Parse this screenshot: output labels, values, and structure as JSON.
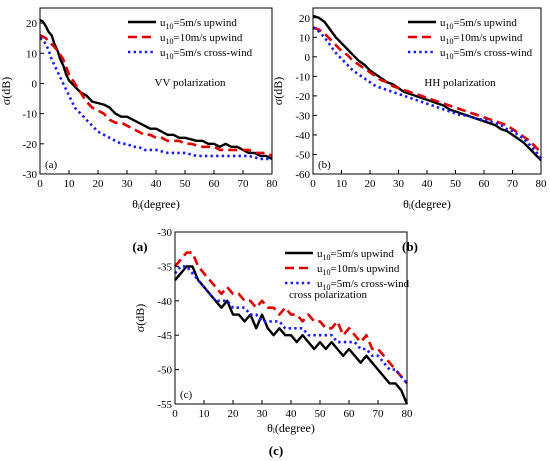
{
  "chart_data": [
    {
      "type": "line",
      "panel_tag": "(a)",
      "caption": "(a)",
      "annotation": "VV polarization",
      "xlabel": "θᵢ(degree)",
      "ylabel": "σ(dB)",
      "xlim": [
        0,
        80
      ],
      "ylim": [
        -30,
        25
      ],
      "xticks": [
        0,
        10,
        20,
        30,
        40,
        50,
        60,
        70,
        80
      ],
      "yticks": [
        -30,
        -20,
        -10,
        0,
        10,
        20
      ],
      "legend_position": "top-right",
      "grid": false,
      "series": [
        {
          "name": "u10=5m/s  upwind",
          "name_base": "u",
          "name_sub": "10",
          "name_rest": "=5m/s  upwind",
          "color": "#000000",
          "dash": "solid",
          "x": [
            0,
            1,
            2,
            3,
            4,
            5,
            6,
            7,
            8,
            9,
            10,
            12,
            14,
            16,
            18,
            20,
            22,
            24,
            26,
            28,
            30,
            32,
            34,
            36,
            38,
            40,
            42,
            44,
            46,
            48,
            50,
            52,
            54,
            56,
            58,
            60,
            62,
            64,
            66,
            68,
            70,
            72,
            74,
            76,
            78,
            80
          ],
          "y": [
            21,
            20.5,
            19,
            17,
            16,
            13,
            11,
            8,
            6,
            3,
            1,
            -1,
            -3,
            -4,
            -6,
            -6.5,
            -7,
            -8,
            -10,
            -11,
            -11,
            -12,
            -13,
            -14,
            -15,
            -15,
            -16,
            -17,
            -17,
            -18,
            -18,
            -18.5,
            -19,
            -19,
            -20,
            -20,
            -21,
            -20,
            -21,
            -21,
            -22,
            -23,
            -23,
            -24,
            -24,
            -25
          ]
        },
        {
          "name": "u10=10m/s  upwind",
          "name_base": "u",
          "name_sub": "10",
          "name_rest": "=10m/s  upwind",
          "color": "#e00000",
          "dash": "dash",
          "x": [
            0,
            1,
            2,
            3,
            4,
            5,
            6,
            8,
            10,
            12,
            14,
            16,
            18,
            20,
            22,
            24,
            26,
            28,
            30,
            32,
            34,
            36,
            38,
            40,
            42,
            44,
            46,
            48,
            50,
            52,
            54,
            56,
            58,
            60,
            62,
            64,
            66,
            68,
            70,
            72,
            74,
            76,
            78,
            80
          ],
          "y": [
            16,
            15.5,
            15,
            14,
            13,
            12,
            11,
            8,
            3,
            0,
            -3,
            -6,
            -8,
            -9,
            -10,
            -12,
            -13,
            -13,
            -14,
            -15,
            -16,
            -17,
            -17,
            -18,
            -18,
            -19,
            -19,
            -19,
            -20,
            -20,
            -20.5,
            -21,
            -21,
            -21,
            -22,
            -22,
            -22,
            -22,
            -22,
            -22,
            -23,
            -23,
            -23,
            -24
          ]
        },
        {
          "name": "u10=5m/s  cross-wind",
          "name_base": "u",
          "name_sub": "10",
          "name_rest": "=5m/s  cross-wind",
          "color": "#1a1aff",
          "dash": "dot",
          "x": [
            0,
            1,
            2,
            3,
            4,
            5,
            6,
            8,
            10,
            12,
            14,
            16,
            18,
            20,
            22,
            24,
            26,
            28,
            30,
            32,
            34,
            36,
            38,
            40,
            42,
            44,
            46,
            48,
            50,
            52,
            54,
            56,
            58,
            60,
            62,
            64,
            66,
            68,
            70,
            72,
            74,
            76,
            78,
            80
          ],
          "y": [
            15,
            14.5,
            13,
            11,
            8,
            6,
            4,
            0,
            -4,
            -8,
            -10,
            -12,
            -14,
            -16,
            -17,
            -18,
            -19,
            -20,
            -20,
            -21,
            -21,
            -22,
            -22,
            -22,
            -22.5,
            -23,
            -23,
            -23,
            -23,
            -23.5,
            -24,
            -24,
            -24,
            -24,
            -24,
            -24,
            -24,
            -24,
            -24,
            -24,
            -24.5,
            -25,
            -25,
            -25
          ]
        }
      ]
    },
    {
      "type": "line",
      "panel_tag": "(b)",
      "caption": "(b)",
      "annotation": "HH polarization",
      "xlabel": "θᵢ(degree)",
      "ylabel": "σ(dB)",
      "xlim": [
        0,
        80
      ],
      "ylim": [
        -60,
        25
      ],
      "xticks": [
        0,
        10,
        20,
        30,
        40,
        50,
        60,
        70,
        80
      ],
      "yticks": [
        -60,
        -50,
        -40,
        -30,
        -20,
        -10,
        0,
        10,
        20
      ],
      "legend_position": "top-right",
      "grid": false,
      "series": [
        {
          "name": "u10=5m/s  upwind",
          "name_base": "u",
          "name_sub": "10",
          "name_rest": "=5m/s  upwind",
          "color": "#000000",
          "dash": "solid",
          "x": [
            0,
            2,
            4,
            6,
            8,
            10,
            12,
            14,
            16,
            18,
            20,
            22,
            24,
            26,
            28,
            30,
            32,
            34,
            36,
            38,
            40,
            42,
            44,
            46,
            48,
            50,
            52,
            54,
            56,
            58,
            60,
            62,
            64,
            66,
            68,
            70,
            72,
            74,
            76,
            78,
            80
          ],
          "y": [
            21,
            20,
            18,
            14,
            10,
            7,
            4,
            1,
            -2,
            -4,
            -7,
            -9,
            -11,
            -13,
            -14,
            -16,
            -18,
            -19,
            -20,
            -21,
            -22,
            -23,
            -24,
            -25,
            -27,
            -28,
            -29,
            -30,
            -31,
            -32,
            -33,
            -34,
            -35,
            -37,
            -38,
            -40,
            -42,
            -44,
            -47,
            -50,
            -53
          ]
        },
        {
          "name": "u10=10m/s  upwind",
          "name_base": "u",
          "name_sub": "10",
          "name_rest": "=10m/s  upwind",
          "color": "#e00000",
          "dash": "dash",
          "x": [
            0,
            2,
            4,
            6,
            8,
            10,
            12,
            14,
            16,
            18,
            20,
            22,
            24,
            26,
            28,
            30,
            32,
            34,
            36,
            38,
            40,
            42,
            44,
            46,
            48,
            50,
            52,
            54,
            56,
            58,
            60,
            62,
            64,
            66,
            68,
            70,
            72,
            74,
            76,
            78,
            80
          ],
          "y": [
            15,
            14,
            12,
            9,
            6,
            3,
            1,
            -2,
            -4,
            -6,
            -8,
            -10,
            -12,
            -13,
            -15,
            -16,
            -17,
            -18,
            -19,
            -20,
            -21,
            -22,
            -23,
            -24,
            -25,
            -26,
            -27,
            -28,
            -29,
            -30,
            -31,
            -32,
            -33,
            -34,
            -35,
            -37,
            -39,
            -41,
            -43,
            -46,
            -49
          ]
        },
        {
          "name": "u10=5m/s  cross-wind",
          "name_base": "u",
          "name_sub": "10",
          "name_rest": "=5m/s  cross-wind",
          "color": "#1a1aff",
          "dash": "dot",
          "x": [
            0,
            2,
            4,
            6,
            8,
            10,
            12,
            14,
            16,
            18,
            20,
            22,
            24,
            26,
            28,
            30,
            32,
            34,
            36,
            38,
            40,
            42,
            44,
            46,
            48,
            50,
            52,
            54,
            56,
            58,
            60,
            62,
            64,
            66,
            68,
            70,
            72,
            74,
            76,
            78,
            80
          ],
          "y": [
            15,
            13,
            10,
            6,
            2,
            -1,
            -4,
            -7,
            -9,
            -11,
            -13,
            -15,
            -16,
            -17,
            -18,
            -19,
            -20,
            -21,
            -22,
            -23,
            -24,
            -25,
            -26,
            -27,
            -28,
            -29,
            -30,
            -30,
            -31,
            -32,
            -32,
            -33,
            -34,
            -35,
            -37,
            -38,
            -40,
            -42,
            -45,
            -48,
            -52
          ]
        }
      ]
    },
    {
      "type": "line",
      "panel_tag": "(c)",
      "caption": "(c)",
      "annotation": "cross polarization",
      "xlabel": "θᵢ(degree)",
      "ylabel": "σ(dB)",
      "xlim": [
        0,
        80
      ],
      "ylim": [
        -55,
        -30
      ],
      "xticks": [
        0,
        10,
        20,
        30,
        40,
        50,
        60,
        70,
        80
      ],
      "yticks": [
        -55,
        -50,
        -45,
        -40,
        -35,
        -30
      ],
      "legend_position": "top-right",
      "grid": false,
      "series": [
        {
          "name": "u10=5m/s  upwind",
          "name_base": "u",
          "name_sub": "10",
          "name_rest": "=5m/s  upwind",
          "color": "#000000",
          "dash": "solid",
          "x": [
            0,
            2,
            4,
            6,
            8,
            10,
            12,
            14,
            16,
            18,
            20,
            22,
            24,
            26,
            28,
            30,
            32,
            34,
            36,
            38,
            40,
            42,
            44,
            46,
            48,
            50,
            52,
            54,
            56,
            58,
            60,
            62,
            64,
            66,
            68,
            70,
            72,
            74,
            76,
            78,
            80
          ],
          "y": [
            -37,
            -36,
            -35,
            -35,
            -37,
            -38,
            -39,
            -40,
            -41,
            -40,
            -42,
            -42,
            -43,
            -42,
            -44,
            -42,
            -44,
            -45,
            -44,
            -45,
            -45,
            -46,
            -45,
            -46,
            -47,
            -46,
            -47,
            -46,
            -47,
            -48,
            -47,
            -48,
            -49,
            -48,
            -49,
            -50,
            -51,
            -52,
            -52,
            -53,
            -55
          ]
        },
        {
          "name": "u10=10m/s  upwind",
          "name_base": "u",
          "name_sub": "10",
          "name_rest": "=10m/s  upwind",
          "color": "#e00000",
          "dash": "dash",
          "x": [
            0,
            2,
            4,
            6,
            8,
            10,
            12,
            14,
            16,
            18,
            20,
            22,
            24,
            26,
            28,
            30,
            32,
            34,
            36,
            38,
            40,
            42,
            44,
            46,
            48,
            50,
            52,
            54,
            56,
            58,
            60,
            62,
            64,
            66,
            68,
            70,
            72,
            74,
            76,
            78,
            80
          ],
          "y": [
            -35,
            -34,
            -33,
            -33,
            -35,
            -36,
            -37,
            -38,
            -39,
            -38,
            -39,
            -39,
            -40,
            -40,
            -41,
            -40,
            -41,
            -41,
            -42,
            -41,
            -42,
            -42,
            -43,
            -42,
            -43,
            -43,
            -44,
            -44,
            -43,
            -45,
            -44,
            -45,
            -46,
            -45,
            -47,
            -47,
            -48,
            -49,
            -50,
            -51,
            -52
          ]
        },
        {
          "name": "u10=5m/s  cross-wind",
          "name_base": "u",
          "name_sub": "10",
          "name_rest": "=5m/s  cross-wind",
          "color": "#1a1aff",
          "dash": "dot",
          "x": [
            0,
            2,
            4,
            6,
            8,
            10,
            12,
            14,
            16,
            18,
            20,
            22,
            24,
            26,
            28,
            30,
            32,
            34,
            36,
            38,
            40,
            42,
            44,
            46,
            48,
            50,
            52,
            54,
            56,
            58,
            60,
            62,
            64,
            66,
            68,
            70,
            72,
            74,
            76,
            78,
            80
          ],
          "y": [
            -36,
            -35,
            -35,
            -36,
            -37,
            -38,
            -39,
            -40,
            -40,
            -40,
            -41,
            -41,
            -41,
            -42,
            -42,
            -43,
            -43,
            -43,
            -43,
            -44,
            -44,
            -44,
            -44,
            -45,
            -45,
            -45,
            -45,
            -45,
            -46,
            -46,
            -46,
            -46,
            -47,
            -47,
            -48,
            -48,
            -49,
            -50,
            -50,
            -51,
            -52
          ]
        }
      ]
    }
  ]
}
